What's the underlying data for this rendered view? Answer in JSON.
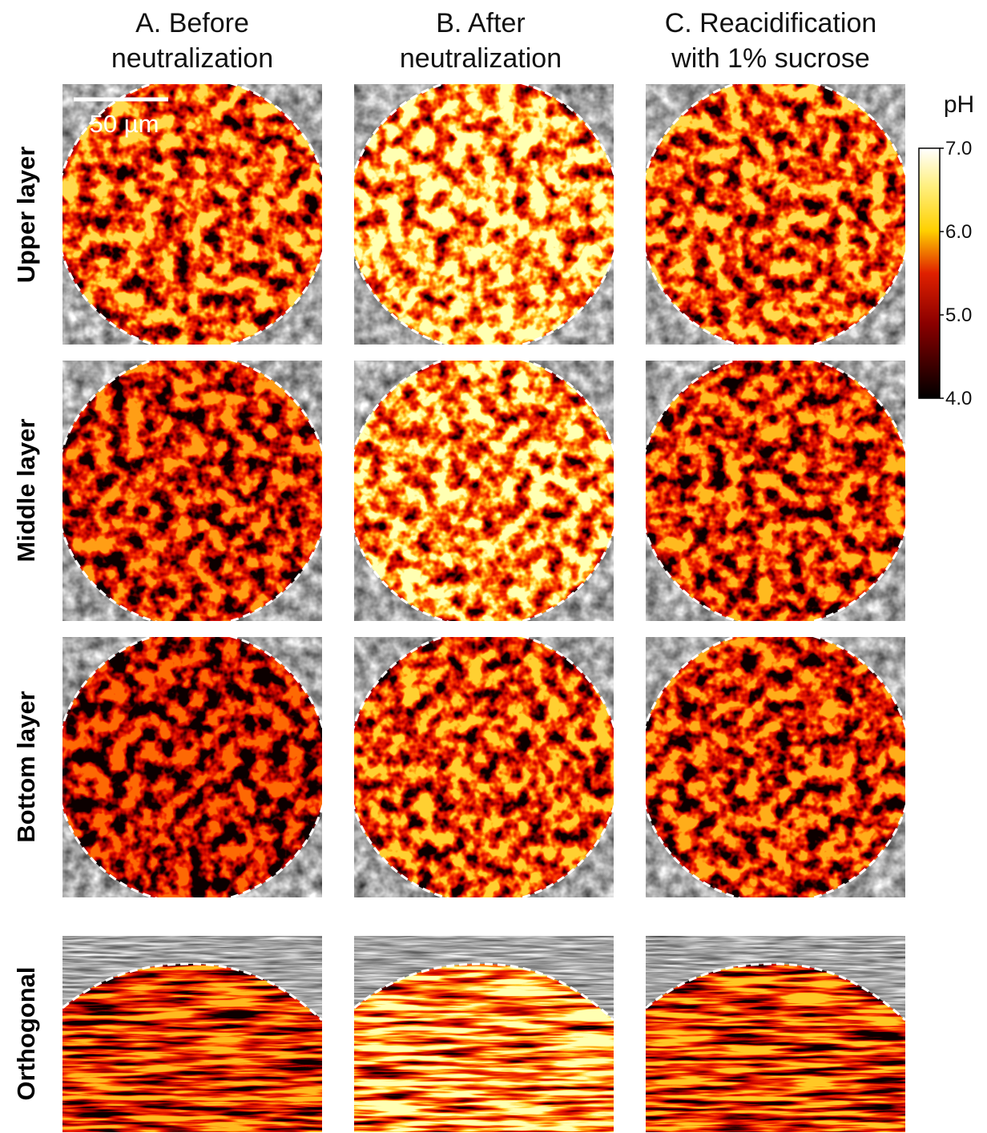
{
  "columns": [
    {
      "line1": "A. Before",
      "line2": "neutralization"
    },
    {
      "line1": "B. After",
      "line2": "neutralization"
    },
    {
      "line1": "C. Reacidification",
      "line2": "with 1% sucrose"
    }
  ],
  "rows": [
    "Upper layer",
    "Middle layer",
    "Bottom layer",
    "Orthogonal"
  ],
  "scale_bar": "50 µm",
  "colorbar": {
    "title": "pH",
    "range": [
      4,
      7
    ],
    "ticks": [
      {
        "value": 7,
        "label": "7.0"
      },
      {
        "value": 6,
        "label": "6.0"
      },
      {
        "value": 5,
        "label": "5.0"
      },
      {
        "value": 4,
        "label": "4.0"
      }
    ]
  }
}
